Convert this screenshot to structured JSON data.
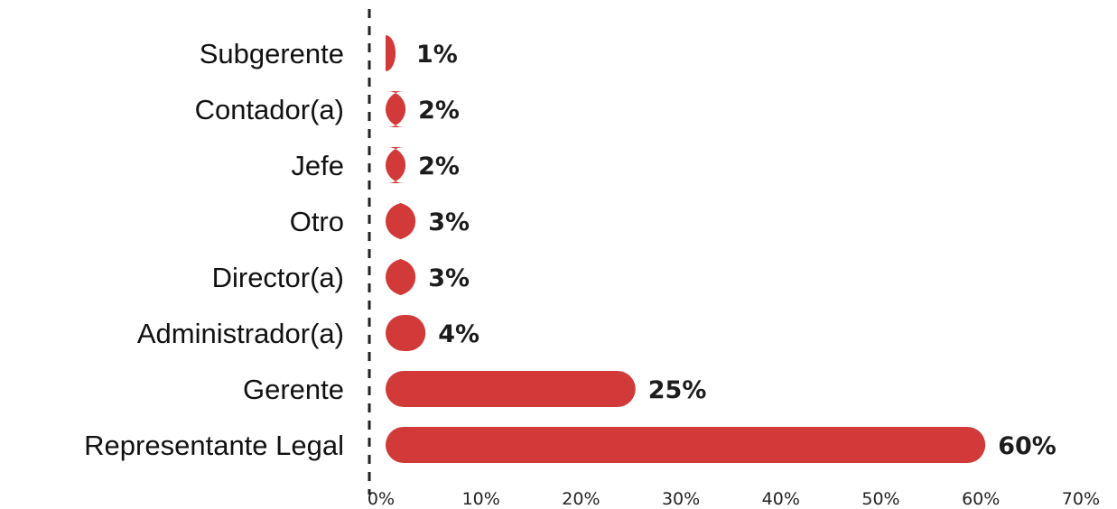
{
  "chart_data": {
    "type": "bar",
    "orientation": "horizontal",
    "categories": [
      "Subgerente",
      "Contador(a)",
      "Jefe",
      "Otro",
      "Director(a)",
      "Administrador(a)",
      "Gerente",
      "Representante Legal"
    ],
    "values": [
      1,
      2,
      2,
      3,
      3,
      4,
      25,
      60
    ],
    "value_labels": [
      "1%",
      "2%",
      "2%",
      "3%",
      "3%",
      "4%",
      "25%",
      "60%"
    ],
    "xlim": [
      0,
      70
    ],
    "xticks": [
      0,
      10,
      20,
      30,
      40,
      50,
      60,
      70
    ],
    "xtick_labels": [
      "0%",
      "10%",
      "20%",
      "30%",
      "40%",
      "50%",
      "60%",
      "70%"
    ],
    "title": "",
    "xlabel": "",
    "ylabel": "",
    "grid": false,
    "legend": "none",
    "colors": {
      "bar": "#D13A38",
      "axis": "#222222"
    }
  }
}
